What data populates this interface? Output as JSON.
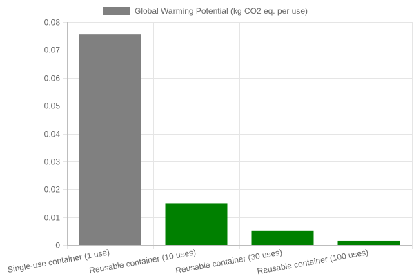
{
  "chart_data": {
    "type": "bar",
    "categories": [
      "Single-use container (1 use)",
      "Reusable container (10 uses)",
      "Reusable container (30 uses)",
      "Reusable container (100 uses)"
    ],
    "series": [
      {
        "name": "Global Warming Potential (kg CO2 eq. per use)",
        "values": [
          0.0755,
          0.015,
          0.005,
          0.0015
        ]
      }
    ],
    "bar_colors": [
      "#808080",
      "#008000",
      "#008000",
      "#008000"
    ],
    "legend_color": "#808080",
    "ylim": [
      0,
      0.08
    ],
    "yticks": [
      "0",
      "0.01",
      "0.02",
      "0.03",
      "0.04",
      "0.05",
      "0.06",
      "0.07",
      "0.08"
    ],
    "grid": true,
    "legend_position": "top-center",
    "title": "",
    "xlabel": "",
    "ylabel": ""
  }
}
